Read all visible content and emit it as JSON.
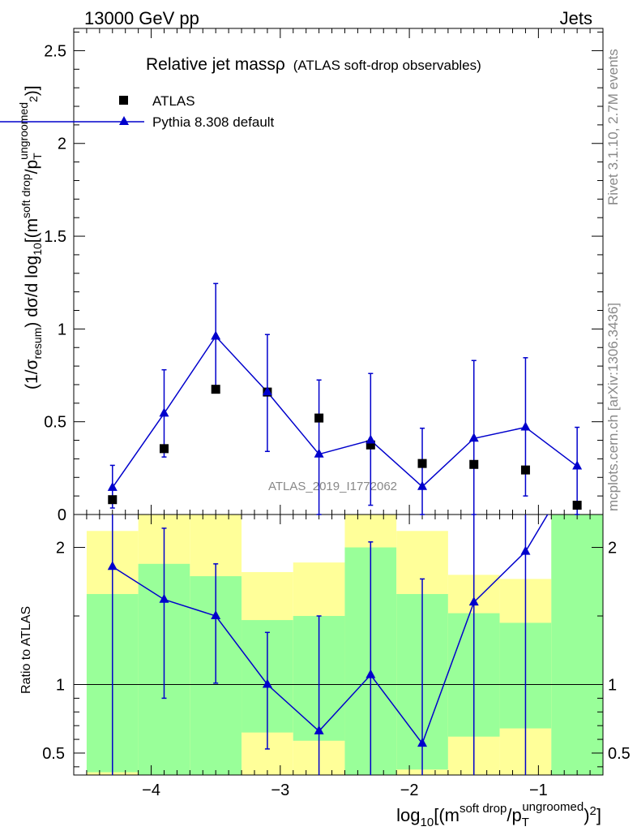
{
  "header": {
    "left": "13000 GeV pp",
    "right": "Jets"
  },
  "side_labels": {
    "rivet": "Rivet 3.1.10,  2.7M events",
    "mcplots": "mcplots.cern.ch [arXiv:1306.3436]"
  },
  "chart_data": {
    "type": "scatter",
    "title": "Relative jet mass",
    "title_symbol": "ρ",
    "title_note": "(ATLAS soft-drop observables)",
    "watermark": "ATLAS_2019_I1772062",
    "xlabel": "log10[(m^{soft drop}/p_T^{ungroomed})^2]",
    "ylabel_top": "(1/σ_resum) dσ/d log10[(m^{soft drop}/p_T^{ungroomed})^2]",
    "ylabel_bottom": "Ratio to ATLAS",
    "xlim": [
      -4.6,
      -0.5
    ],
    "ylim_top": [
      0,
      2.62
    ],
    "ylim_bottom": [
      0.34,
      2.24
    ],
    "x_ticks": [
      "−4",
      "−3",
      "−2",
      "−1"
    ],
    "y_ticks_top": [
      "0",
      "0.5",
      "1",
      "1.5",
      "2",
      "2.5"
    ],
    "y_ticks_bottom": [
      "0.5",
      "1",
      "2"
    ],
    "legend_placement": "top-left",
    "series": [
      {
        "name": "ATLAS",
        "marker": "square",
        "color": "#000000",
        "x": [
          -4.3,
          -3.9,
          -3.5,
          -3.1,
          -2.7,
          -2.3,
          -1.9,
          -1.5,
          -1.1,
          -0.7
        ],
        "y": [
          0.08,
          0.355,
          0.675,
          0.66,
          0.52,
          0.375,
          0.275,
          0.27,
          0.24,
          0.05
        ]
      },
      {
        "name": "Pythia 8.308 default",
        "marker": "triangle",
        "color": "#0000cc",
        "x": [
          -4.3,
          -3.9,
          -3.5,
          -3.1,
          -2.7,
          -2.3,
          -1.9,
          -1.5,
          -1.1,
          -0.7
        ],
        "y": [
          0.145,
          0.545,
          0.96,
          0.66,
          0.325,
          0.4,
          0.15,
          0.41,
          0.47,
          0.26
        ],
        "err_lo": [
          0.11,
          0.235,
          0.28,
          0.32,
          0.33,
          0.35,
          0.155,
          0.41,
          0.37,
          0.26
        ],
        "err_hi": [
          0.12,
          0.235,
          0.285,
          0.31,
          0.4,
          0.36,
          0.315,
          0.42,
          0.375,
          0.21
        ]
      }
    ],
    "ratio": {
      "x": [
        -4.3,
        -3.9,
        -3.5,
        -3.1,
        -2.7,
        -2.3,
        -1.9,
        -1.5,
        -1.1,
        -0.7
      ],
      "y": [
        1.86,
        1.62,
        1.5,
        1.0,
        0.66,
        1.07,
        0.57,
        1.6,
        1.97,
        2.6
      ],
      "err_lo": [
        1.86,
        0.72,
        0.49,
        0.47,
        0.66,
        1.07,
        0.57,
        1.6,
        1.97,
        0
      ],
      "err_hi": [
        0.5,
        0.52,
        0.38,
        0.38,
        0.84,
        0.97,
        1.2,
        1.0,
        0.8,
        0
      ],
      "band_edges": [
        -4.5,
        -4.1,
        -3.7,
        -3.3,
        -2.9,
        -2.5,
        -2.1,
        -1.7,
        -1.3,
        -0.9,
        -0.5
      ],
      "inner_band": [
        [
          0.36,
          1.66
        ],
        [
          0.34,
          1.88
        ],
        [
          0.34,
          1.79
        ],
        [
          0.34,
          1.47
        ],
        [
          0.34,
          1.5
        ],
        [
          0.34,
          2.0
        ],
        [
          0.34,
          1.66
        ],
        [
          0.34,
          1.52
        ],
        [
          0.34,
          1.45
        ],
        [
          0.34,
          2.24
        ]
      ],
      "outer_band": [
        [
          0.34,
          2.12
        ],
        [
          0.34,
          2.24
        ],
        [
          0.34,
          2.24
        ],
        [
          0.34,
          1.82
        ],
        [
          0.34,
          1.89
        ],
        [
          0.34,
          2.24
        ],
        [
          0.34,
          2.12
        ],
        [
          0.34,
          1.8
        ],
        [
          0.34,
          1.77
        ],
        [
          0.34,
          2.24
        ]
      ],
      "green_band_floor": [
        0.36,
        0.34,
        0.34,
        0.65,
        0.59,
        0.34,
        0.38,
        0.62,
        0.68,
        0.34
      ],
      "colors": {
        "inner": "#99ff99",
        "outer": "#ffff99",
        "line": "#000000"
      }
    }
  }
}
